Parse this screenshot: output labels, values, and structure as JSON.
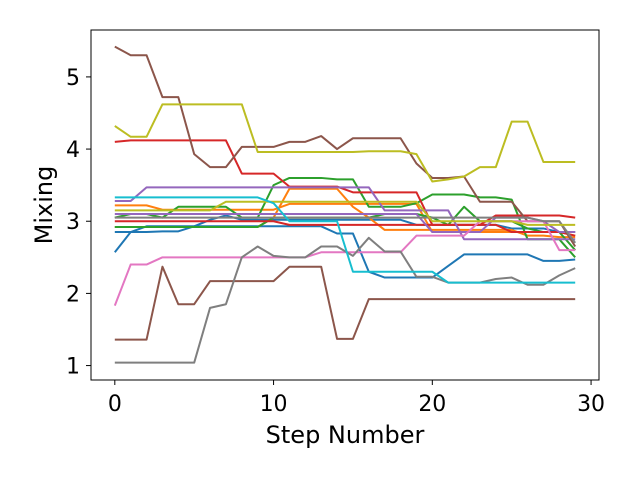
{
  "chart_data": {
    "type": "line",
    "xlabel": "Step Number",
    "ylabel": "Mixing",
    "xlim": [
      -1.5,
      30.5
    ],
    "ylim": [
      0.8,
      5.65
    ],
    "xticks": [
      0,
      10,
      20,
      30
    ],
    "yticks": [
      1,
      2,
      3,
      4,
      5
    ],
    "grid": false,
    "legend": "none",
    "x": [
      0,
      1,
      2,
      3,
      4,
      5,
      6,
      7,
      8,
      9,
      10,
      11,
      12,
      13,
      14,
      15,
      16,
      17,
      18,
      19,
      20,
      21,
      22,
      23,
      24,
      25,
      26,
      27,
      28,
      29
    ],
    "series": [
      {
        "color": "#1f77b4",
        "values": [
          2.57,
          2.85,
          2.93,
          2.93,
          2.93,
          2.93,
          2.93,
          2.93,
          2.93,
          2.93,
          2.93,
          2.93,
          2.93,
          2.93,
          2.83,
          2.83,
          2.3,
          2.22,
          2.22,
          2.22,
          2.22,
          2.38,
          2.54,
          2.54,
          2.54,
          2.54,
          2.54,
          2.45,
          2.45,
          2.47
        ]
      },
      {
        "color": "#1f77b4",
        "values": [
          2.85,
          2.85,
          2.85,
          2.86,
          2.86,
          2.93,
          3.02,
          3.08,
          3.02,
          3.02,
          3.02,
          3.02,
          3.02,
          3.02,
          3.02,
          3.02,
          3.02,
          3.02,
          3.02,
          2.95,
          2.95,
          2.95,
          2.95,
          2.95,
          2.95,
          2.9,
          2.9,
          2.9,
          2.85,
          2.85
        ]
      },
      {
        "color": "#ff7f0e",
        "values": [
          3.22,
          3.22,
          3.22,
          3.16,
          3.16,
          3.16,
          3.16,
          3.16,
          3.16,
          3.16,
          3.16,
          3.24,
          3.24,
          3.24,
          3.24,
          3.24,
          3.24,
          3.24,
          3.24,
          3.24,
          2.85,
          2.85,
          2.85,
          2.85,
          2.85,
          2.85,
          2.85,
          2.85,
          2.85,
          2.8
        ]
      },
      {
        "color": "#ff7f0e",
        "values": [
          2.92,
          2.92,
          2.92,
          2.92,
          2.92,
          2.92,
          2.92,
          2.92,
          2.92,
          2.92,
          3.05,
          3.45,
          3.45,
          3.45,
          3.45,
          3.2,
          3.05,
          2.88,
          2.88,
          2.88,
          2.88,
          2.88,
          2.88,
          2.88,
          2.88,
          2.88,
          2.8,
          2.8,
          2.78,
          2.78
        ]
      },
      {
        "color": "#2ca02c",
        "values": [
          3.05,
          3.1,
          3.1,
          3.05,
          3.2,
          3.2,
          3.2,
          3.2,
          3.05,
          3.05,
          3.5,
          3.6,
          3.6,
          3.6,
          3.58,
          3.58,
          3.2,
          3.2,
          3.2,
          3.25,
          3.37,
          3.37,
          3.37,
          3.33,
          3.33,
          3.3,
          2.75,
          2.75,
          2.75,
          2.5
        ]
      },
      {
        "color": "#2ca02c",
        "values": [
          2.92,
          2.92,
          2.92,
          2.92,
          2.92,
          2.92,
          2.92,
          2.92,
          2.92,
          2.92,
          3.05,
          3.05,
          3.05,
          3.05,
          3.05,
          3.05,
          3.05,
          3.1,
          3.1,
          3.1,
          3.05,
          2.95,
          3.2,
          3.0,
          3.0,
          3.0,
          2.9,
          2.85,
          2.85,
          2.6
        ]
      },
      {
        "color": "#d62728",
        "values": [
          4.1,
          4.12,
          4.12,
          4.12,
          4.12,
          4.12,
          4.12,
          4.12,
          3.66,
          3.66,
          3.66,
          3.48,
          3.48,
          3.48,
          3.48,
          3.4,
          3.4,
          3.4,
          3.4,
          3.4,
          2.95,
          2.95,
          2.95,
          2.95,
          3.08,
          3.08,
          3.08,
          3.08,
          3.08,
          3.05
        ]
      },
      {
        "color": "#d62728",
        "values": [
          3.0,
          3.0,
          3.0,
          3.0,
          3.0,
          3.0,
          3.0,
          3.0,
          3.0,
          3.0,
          3.0,
          2.95,
          2.95,
          2.95,
          2.95,
          2.95,
          2.95,
          2.95,
          2.95,
          2.95,
          2.95,
          2.95,
          2.95,
          2.95,
          2.95,
          2.85,
          2.85,
          2.85,
          2.85,
          2.8
        ]
      },
      {
        "color": "#9467bd",
        "values": [
          3.28,
          3.28,
          3.47,
          3.47,
          3.47,
          3.47,
          3.47,
          3.47,
          3.47,
          3.47,
          3.47,
          3.47,
          3.47,
          3.47,
          3.47,
          3.47,
          3.47,
          3.15,
          3.15,
          3.15,
          3.15,
          3.15,
          2.75,
          2.75,
          2.75,
          2.75,
          2.75,
          2.75,
          2.75,
          2.75
        ]
      },
      {
        "color": "#9467bd",
        "values": [
          3.1,
          3.1,
          3.1,
          3.1,
          3.1,
          3.1,
          3.1,
          3.1,
          3.1,
          3.1,
          3.1,
          3.1,
          3.1,
          3.1,
          3.1,
          3.1,
          3.1,
          3.1,
          3.1,
          3.1,
          2.85,
          2.85,
          2.85,
          2.85,
          3.05,
          3.05,
          3.05,
          3.0,
          2.85,
          2.85
        ]
      },
      {
        "color": "#8c564b",
        "values": [
          5.42,
          5.3,
          5.3,
          4.72,
          4.72,
          3.93,
          3.75,
          3.75,
          4.03,
          4.03,
          4.03,
          4.1,
          4.1,
          4.18,
          4.0,
          4.15,
          4.15,
          4.15,
          4.15,
          3.8,
          3.6,
          3.6,
          3.62,
          3.27,
          3.27,
          3.27,
          3.0,
          3.0,
          3.0,
          2.65
        ]
      },
      {
        "color": "#8c564b",
        "values": [
          1.36,
          1.36,
          1.36,
          2.37,
          1.85,
          1.85,
          2.17,
          2.17,
          2.17,
          2.17,
          2.17,
          2.37,
          2.37,
          2.37,
          1.37,
          1.37,
          1.92,
          1.92,
          1.92,
          1.92,
          1.92,
          1.92,
          1.92,
          1.92,
          1.92,
          1.92,
          1.92,
          1.92,
          1.92,
          1.92
        ]
      },
      {
        "color": "#e377c2",
        "values": [
          1.83,
          2.4,
          2.4,
          2.5,
          2.5,
          2.5,
          2.5,
          2.5,
          2.5,
          2.5,
          2.5,
          2.5,
          2.5,
          2.57,
          2.57,
          2.57,
          2.57,
          2.57,
          2.57,
          2.8,
          2.8,
          2.8,
          2.8,
          3.0,
          3.0,
          3.0,
          3.0,
          3.0,
          2.6,
          2.6
        ]
      },
      {
        "color": "#7f7f7f",
        "values": [
          1.04,
          1.04,
          1.04,
          1.04,
          1.04,
          1.04,
          1.8,
          1.85,
          2.5,
          2.65,
          2.52,
          2.5,
          2.5,
          2.65,
          2.65,
          2.52,
          2.77,
          2.58,
          2.58,
          2.23,
          2.23,
          2.15,
          2.15,
          2.15,
          2.2,
          2.22,
          2.12,
          2.12,
          2.25,
          2.35
        ]
      },
      {
        "color": "#7f7f7f",
        "values": [
          3.05,
          3.05,
          3.05,
          3.05,
          3.05,
          3.05,
          3.05,
          3.05,
          3.05,
          3.05,
          3.05,
          3.05,
          3.05,
          3.05,
          3.05,
          3.05,
          3.05,
          3.05,
          3.05,
          3.05,
          3.05,
          3.05,
          3.05,
          3.05,
          3.05,
          3.05,
          3.05,
          3.0,
          3.0,
          2.7
        ]
      },
      {
        "color": "#bcbd22",
        "values": [
          4.32,
          4.17,
          4.17,
          4.62,
          4.62,
          4.62,
          4.62,
          4.62,
          4.62,
          3.96,
          3.96,
          3.96,
          3.96,
          3.96,
          3.96,
          3.96,
          3.97,
          3.97,
          3.97,
          3.93,
          3.55,
          3.58,
          3.62,
          3.75,
          3.75,
          4.38,
          4.38,
          3.82,
          3.82,
          3.82
        ]
      },
      {
        "color": "#bcbd22",
        "values": [
          3.15,
          3.15,
          3.15,
          3.15,
          3.15,
          3.15,
          3.15,
          3.27,
          3.27,
          3.27,
          3.27,
          3.27,
          3.27,
          3.27,
          3.27,
          3.27,
          3.27,
          3.27,
          3.27,
          3.27,
          3.0,
          3.0,
          3.0,
          3.0,
          3.0,
          3.0,
          2.95,
          2.95,
          2.95,
          2.95
        ]
      },
      {
        "color": "#17becf",
        "values": [
          3.33,
          3.33,
          3.33,
          3.33,
          3.33,
          3.33,
          3.33,
          3.33,
          3.33,
          3.33,
          3.25,
          3.0,
          3.0,
          3.0,
          3.0,
          2.3,
          2.3,
          2.3,
          2.3,
          2.3,
          2.3,
          2.15,
          2.15,
          2.15,
          2.15,
          2.15,
          2.15,
          2.15,
          2.15,
          2.15
        ]
      }
    ]
  }
}
